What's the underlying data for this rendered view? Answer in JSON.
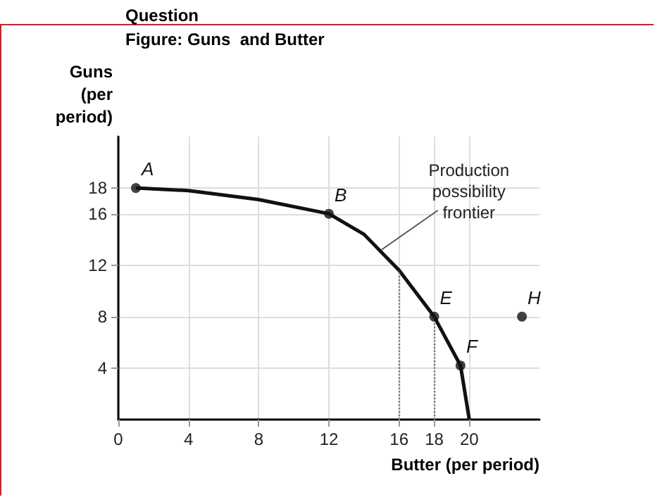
{
  "chart_data": {
    "type": "line",
    "title": "Question",
    "subtitle": "Figure: Guns  and Butter",
    "xlabel": "Butter (per period)",
    "ylabel": "Guns\n(per\nperiod)",
    "xlim": [
      0,
      24
    ],
    "xticks": [
      0,
      4,
      8,
      12,
      16,
      18,
      20
    ],
    "ylim": [
      0,
      22
    ],
    "yticks": [
      4,
      8,
      12,
      16,
      18
    ],
    "grid": true,
    "series": [
      {
        "type": "line",
        "color": "#111111",
        "marker": "none",
        "x": [
          1,
          4,
          8,
          12,
          14,
          16,
          18,
          19.5,
          20
        ],
        "values": [
          18,
          17.8,
          17.1,
          16,
          14.4,
          11.6,
          8,
          4.2,
          0
        ]
      },
      {
        "type": "scatter",
        "color": "#111111",
        "marker": "circle",
        "x": [
          1,
          12,
          18,
          19.5,
          23
        ],
        "values": [
          18,
          16,
          8,
          4.2,
          8
        ]
      }
    ],
    "ref_lines": [
      {
        "axis": "x",
        "value": 16,
        "line_style": "dotted",
        "color": "#777777"
      },
      {
        "axis": "x",
        "value": 18,
        "line_style": "dotted",
        "color": "#777777"
      }
    ],
    "annotations": [
      {
        "text": "A",
        "x": 1,
        "y": 18
      },
      {
        "text": "B",
        "x": 12,
        "y": 16
      },
      {
        "text": "E",
        "x": 18,
        "y": 8
      },
      {
        "text": "F",
        "x": 19.5,
        "y": 4.2
      },
      {
        "text": "H",
        "x": 23,
        "y": 8
      },
      {
        "text": "Production\npossibility\nfrontier",
        "x": 15,
        "y": 13.2
      }
    ]
  }
}
